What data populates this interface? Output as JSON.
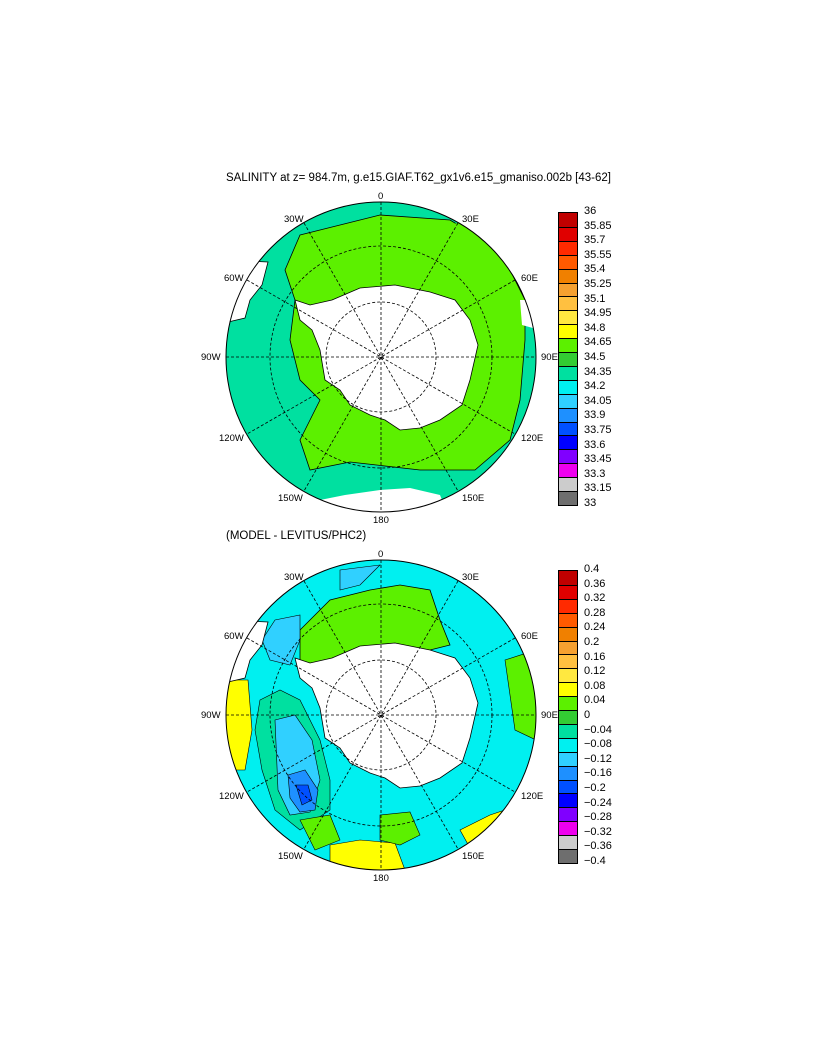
{
  "panel1": {
    "title": "SALINITY at z= 984.7m, g.e15.GIAF.T62_gx1v6.e15_gmaniso.002b [43-62]",
    "lon_labels": {
      "n": "0",
      "nw": "30W",
      "ne": "30E",
      "wnw": "60W",
      "ene": "60E",
      "w": "90W",
      "e": "90E",
      "wsw": "120W",
      "ese": "120E",
      "sw": "150W",
      "se": "150E",
      "s": "180"
    },
    "colorbar": {
      "labels": [
        "36",
        "35.85",
        "35.7",
        "35.55",
        "35.4",
        "35.25",
        "35.1",
        "34.95",
        "34.8",
        "34.65",
        "34.5",
        "34.35",
        "34.2",
        "34.05",
        "33.9",
        "33.75",
        "33.6",
        "33.45",
        "33.3",
        "33.15",
        "33"
      ],
      "colors": [
        "#c00000",
        "#e00000",
        "#ff2a00",
        "#ff5a00",
        "#f08000",
        "#f5a030",
        "#ffc040",
        "#ffe840",
        "#ffff00",
        "#5cf000",
        "#33cc33",
        "#00e0a0",
        "#00f0f0",
        "#30d0ff",
        "#1e90ff",
        "#0050ff",
        "#0000ff",
        "#8000ff",
        "#ee00ee",
        "#cccccc",
        "#6e6e6e"
      ]
    }
  },
  "panel2": {
    "title": "(MODEL - LEVITUS/PHC2)",
    "lon_labels": {
      "n": "0",
      "nw": "30W",
      "ne": "30E",
      "wnw": "60W",
      "ene": "60E",
      "w": "90W",
      "e": "90E",
      "wsw": "120W",
      "ese": "120E",
      "sw": "150W",
      "se": "150E",
      "s": "180"
    },
    "colorbar": {
      "labels": [
        "0.4",
        "0.36",
        "0.32",
        "0.28",
        "0.24",
        "0.2",
        "0.16",
        "0.12",
        "0.08",
        "0.04",
        "0",
        "−0.04",
        "−0.08",
        "−0.12",
        "−0.16",
        "−0.2",
        "−0.24",
        "−0.28",
        "−0.32",
        "−0.36",
        "−0.4"
      ],
      "colors": [
        "#c00000",
        "#e00000",
        "#ff2a00",
        "#ff5a00",
        "#f08000",
        "#f5a030",
        "#ffc040",
        "#ffe840",
        "#ffff00",
        "#5cf000",
        "#33cc33",
        "#00e0a0",
        "#00f0f0",
        "#30d0ff",
        "#1e90ff",
        "#0050ff",
        "#0000ff",
        "#8000ff",
        "#ee00ee",
        "#cccccc",
        "#6e6e6e"
      ]
    }
  }
}
